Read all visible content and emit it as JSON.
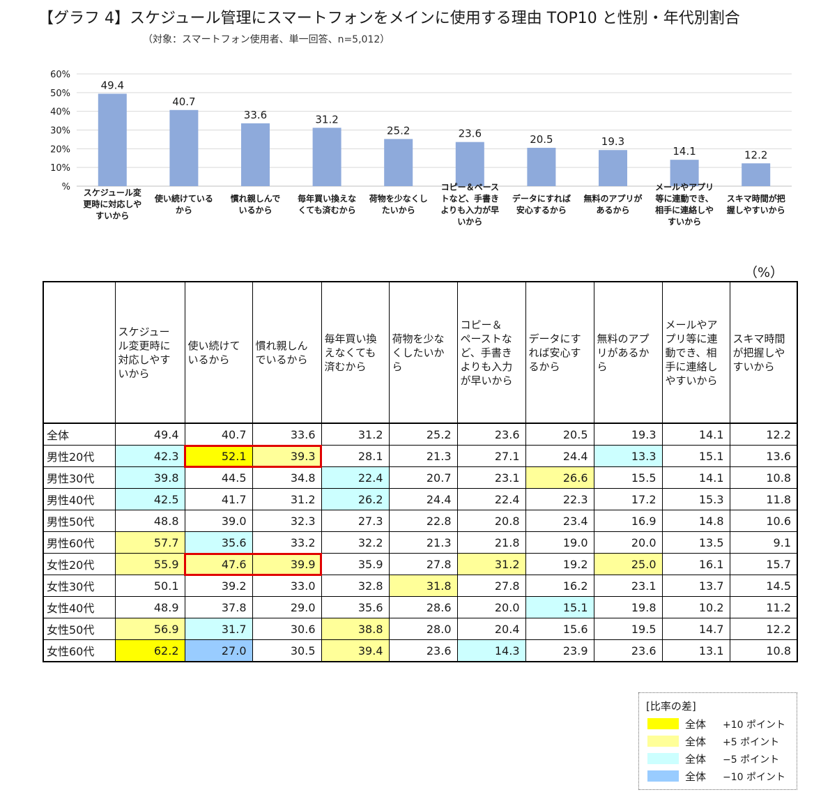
{
  "title": "【グラフ 4】スケジュール管理にスマートフォンをメインに使用する理由 TOP10 と性別・年代別割合",
  "subtitle": "（対象：スマートフォン使用者、単一回答、n=5,012）",
  "chart_data": {
    "type": "bar",
    "categories": [
      [
        "スケジュール変",
        "更時に対応しや",
        "すいから"
      ],
      [
        "使い続けている",
        "から"
      ],
      [
        "慣れ親しんで",
        "いるから"
      ],
      [
        "毎年買い換えな",
        "くても済むから"
      ],
      [
        "荷物を少なくし",
        "たいから"
      ],
      [
        "コピー＆ペース",
        "トなど、手書き",
        "よりも入力が早",
        "いから"
      ],
      [
        "データにすれば",
        "安心するから"
      ],
      [
        "無料のアプリが",
        "あるから"
      ],
      [
        "メールやアプリ",
        "等に連動でき、",
        "相手に連絡しや",
        "すいから"
      ],
      [
        "スキマ時間が把",
        "握しやすいから"
      ]
    ],
    "values": [
      49.4,
      40.7,
      33.6,
      31.2,
      25.2,
      23.6,
      20.5,
      19.3,
      14.1,
      12.2
    ],
    "value_labels": [
      "49.4",
      "40.7",
      "33.6",
      "31.2",
      "25.2",
      "23.6",
      "20.5",
      "19.3",
      "14.1",
      "12.2"
    ],
    "ylim": [
      0,
      60
    ],
    "ytick_labels": [
      "%",
      "10%",
      "20%",
      "30%",
      "40%",
      "50%",
      "60%"
    ],
    "grid": true,
    "bar_color": "#8eaadb"
  },
  "table": {
    "unit": "（%）",
    "columns": [
      [
        "スケジュー",
        "ル変更時に",
        "対応しやす",
        "いから"
      ],
      [
        "使い続けて",
        "いるから"
      ],
      [
        "慣れ親しん",
        "でいるから"
      ],
      [
        "毎年買い換",
        "えなくても",
        "済むから"
      ],
      [
        "荷物を少な",
        "くしたいか",
        "ら"
      ],
      [
        "コピー＆",
        "ペーストな",
        "ど、手書き",
        "よりも入力",
        "が早いから"
      ],
      [
        "データにす",
        "れば安心す",
        "るから"
      ],
      [
        "無料のアプ",
        "リがあるか",
        "ら"
      ],
      [
        "メールやア",
        "プリ等に連",
        "動でき、相",
        "手に連絡し",
        "やすいから"
      ],
      [
        "スキマ時間",
        "が把握しや",
        "すいから"
      ]
    ],
    "rows": [
      {
        "label": "全体",
        "values": [
          "49.4",
          "40.7",
          "33.6",
          "31.2",
          "25.2",
          "23.6",
          "20.5",
          "19.3",
          "14.1",
          "12.2"
        ],
        "levels": [
          0,
          0,
          0,
          0,
          0,
          0,
          0,
          0,
          0,
          0
        ]
      },
      {
        "label": "男性20代",
        "values": [
          "42.3",
          "52.1",
          "39.3",
          "28.1",
          "21.3",
          "27.1",
          "24.4",
          "13.3",
          "15.1",
          "13.6"
        ],
        "levels": [
          -5,
          10,
          5,
          0,
          0,
          0,
          0,
          -5,
          0,
          0
        ]
      },
      {
        "label": "男性30代",
        "values": [
          "39.8",
          "44.5",
          "34.8",
          "22.4",
          "20.7",
          "23.1",
          "26.6",
          "15.5",
          "14.1",
          "10.8"
        ],
        "levels": [
          -5,
          0,
          0,
          -5,
          0,
          0,
          5,
          0,
          0,
          0
        ]
      },
      {
        "label": "男性40代",
        "values": [
          "42.5",
          "41.7",
          "31.2",
          "26.2",
          "24.4",
          "22.4",
          "22.3",
          "17.2",
          "15.3",
          "11.8"
        ],
        "levels": [
          -5,
          0,
          0,
          -5,
          0,
          0,
          0,
          0,
          0,
          0
        ]
      },
      {
        "label": "男性50代",
        "values": [
          "48.8",
          "39.0",
          "32.3",
          "27.3",
          "22.8",
          "20.8",
          "23.4",
          "16.9",
          "14.8",
          "10.6"
        ],
        "levels": [
          0,
          0,
          0,
          0,
          0,
          0,
          0,
          0,
          0,
          0
        ]
      },
      {
        "label": "男性60代",
        "values": [
          "57.7",
          "35.6",
          "33.2",
          "32.2",
          "21.3",
          "21.8",
          "19.0",
          "20.0",
          "13.5",
          "9.1"
        ],
        "levels": [
          5,
          -5,
          0,
          0,
          0,
          0,
          0,
          0,
          0,
          0
        ]
      },
      {
        "label": "女性20代",
        "values": [
          "55.9",
          "47.6",
          "39.9",
          "35.9",
          "27.8",
          "31.2",
          "19.2",
          "25.0",
          "16.1",
          "15.7"
        ],
        "levels": [
          5,
          5,
          5,
          0,
          0,
          5,
          0,
          5,
          0,
          0
        ]
      },
      {
        "label": "女性30代",
        "values": [
          "50.1",
          "39.2",
          "33.0",
          "32.8",
          "31.8",
          "27.8",
          "16.2",
          "23.1",
          "13.7",
          "14.5"
        ],
        "levels": [
          0,
          0,
          0,
          0,
          5,
          0,
          0,
          0,
          0,
          0
        ]
      },
      {
        "label": "女性40代",
        "values": [
          "48.9",
          "37.8",
          "29.0",
          "35.6",
          "28.6",
          "20.0",
          "15.1",
          "19.8",
          "10.2",
          "11.2"
        ],
        "levels": [
          0,
          0,
          0,
          0,
          0,
          0,
          -5,
          0,
          0,
          0
        ]
      },
      {
        "label": "女性50代",
        "values": [
          "56.9",
          "31.7",
          "30.6",
          "38.8",
          "28.0",
          "20.4",
          "15.6",
          "19.5",
          "14.7",
          "12.2"
        ],
        "levels": [
          5,
          -5,
          0,
          5,
          0,
          0,
          0,
          0,
          0,
          0
        ]
      },
      {
        "label": "女性60代",
        "values": [
          "62.2",
          "27.0",
          "30.5",
          "39.4",
          "23.6",
          "14.3",
          "23.9",
          "23.6",
          "13.1",
          "10.8"
        ],
        "levels": [
          10,
          -10,
          0,
          5,
          0,
          -5,
          0,
          0,
          0,
          0
        ]
      }
    ],
    "highlight_boxes": [
      {
        "row": 1,
        "cols": [
          1,
          2
        ]
      },
      {
        "row": 6,
        "cols": [
          1,
          2
        ]
      }
    ],
    "level_colors": {
      "10": "#ffff00",
      "5": "#ffff99",
      "-5": "#ccffff",
      "-10": "#99ccff"
    },
    "highlight_color": "#e00000"
  },
  "legend": {
    "title": "[比率の差]",
    "items": [
      {
        "group": "全体",
        "diff": "+10 ポイント",
        "color": "#ffff00"
      },
      {
        "group": "全体",
        "diff": "+5 ポイント",
        "color": "#ffff99"
      },
      {
        "group": "全体",
        "diff": "−5 ポイント",
        "color": "#ccffff"
      },
      {
        "group": "全体",
        "diff": "−10 ポイント",
        "color": "#99ccff"
      }
    ]
  }
}
